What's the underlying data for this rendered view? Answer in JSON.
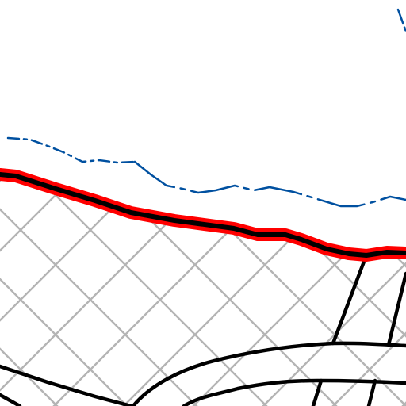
{
  "map": {
    "colors": {
      "background": "#ffffff",
      "boundary_outer": "#ff0000",
      "boundary_inner": "#000000",
      "waterline": "#0050a0",
      "hatch": "#b4b4b4",
      "roads": "#000000"
    },
    "layers": [
      "hatched-area",
      "roads",
      "boundary-line",
      "waterline-dashed"
    ]
  }
}
